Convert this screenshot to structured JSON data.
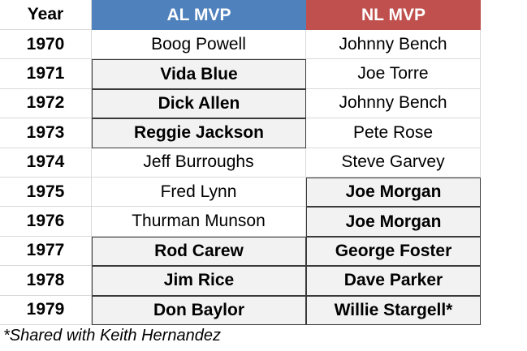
{
  "header": {
    "year": "Year",
    "al": "AL MVP",
    "nl": "NL MVP",
    "al_color": "#4f81bd",
    "nl_color": "#c0504d"
  },
  "table": {
    "rows": [
      [
        "1970",
        "Boog Powell",
        "Johnny Bench"
      ],
      [
        "1971",
        "Vida Blue",
        "Joe Torre"
      ],
      [
        "1972",
        "Dick Allen",
        "Johnny Bench"
      ],
      [
        "1973",
        "Reggie Jackson",
        "Pete Rose"
      ],
      [
        "1974",
        "Jeff Burroughs",
        "Steve Garvey"
      ],
      [
        "1975",
        "Fred Lynn",
        "Joe Morgan"
      ],
      [
        "1976",
        "Thurman Munson",
        "Joe Morgan"
      ],
      [
        "1977",
        "Rod Carew",
        "George Foster"
      ],
      [
        "1978",
        "Jim Rice",
        "Dave Parker"
      ],
      [
        "1979",
        "Don Baylor",
        "Willie Stargell*"
      ]
    ],
    "al_highlight": [
      false,
      true,
      true,
      true,
      false,
      false,
      false,
      true,
      true,
      true
    ],
    "nl_highlight": [
      false,
      false,
      false,
      false,
      false,
      true,
      true,
      true,
      true,
      true
    ]
  },
  "footnote": "*Shared with Keith Hernandez"
}
